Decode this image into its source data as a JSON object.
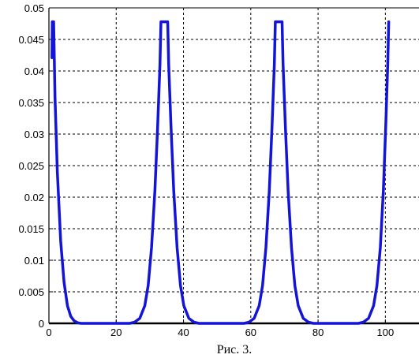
{
  "chart_data": {
    "type": "line",
    "xlim": [
      0,
      110
    ],
    "ylim": [
      0,
      0.05
    ],
    "x_ticks": [
      0,
      20,
      40,
      60,
      80,
      100
    ],
    "x_tick_labels": [
      "0",
      "20",
      "40",
      "60",
      "80",
      "100"
    ],
    "y_ticks": [
      0,
      0.005,
      0.01,
      0.015,
      0.02,
      0.025,
      0.03,
      0.035,
      0.04,
      0.045,
      0.05
    ],
    "y_tick_labels": [
      "0",
      "0.005",
      "0.01",
      "0.015",
      "0.02",
      "0.025",
      "0.03",
      "0.035",
      "0.04",
      "0.045",
      "0.05"
    ],
    "grid": true,
    "grid_style": "dashed",
    "series": [
      {
        "color": "#1414d8",
        "points": [
          [
            0.9,
            0.0421
          ],
          [
            1.0,
            0.0478
          ],
          [
            1.4,
            0.0478
          ],
          [
            1.8,
            0.036
          ],
          [
            2.5,
            0.024
          ],
          [
            3.5,
            0.013
          ],
          [
            4.5,
            0.0065
          ],
          [
            5.5,
            0.0028
          ],
          [
            6.5,
            0.0011
          ],
          [
            7.5,
            0.0004
          ],
          [
            8.5,
            0.0001
          ],
          [
            9.5,
            0.0
          ],
          [
            24,
            0.0
          ],
          [
            25.5,
            0.0002
          ],
          [
            27,
            0.0008
          ],
          [
            28.5,
            0.0028
          ],
          [
            29.5,
            0.006
          ],
          [
            30.5,
            0.012
          ],
          [
            31.5,
            0.021
          ],
          [
            32.3,
            0.031
          ],
          [
            33,
            0.041
          ],
          [
            33.3,
            0.0478
          ],
          [
            35.3,
            0.0478
          ],
          [
            35.6,
            0.041
          ],
          [
            36.3,
            0.031
          ],
          [
            37.1,
            0.021
          ],
          [
            38.1,
            0.012
          ],
          [
            39.1,
            0.006
          ],
          [
            40.1,
            0.0028
          ],
          [
            41.6,
            0.0008
          ],
          [
            43.1,
            0.0002
          ],
          [
            44.6,
            0.0
          ],
          [
            58,
            0.0
          ],
          [
            59.5,
            0.0002
          ],
          [
            61,
            0.0008
          ],
          [
            62.5,
            0.0028
          ],
          [
            63.5,
            0.006
          ],
          [
            64.5,
            0.012
          ],
          [
            65.5,
            0.021
          ],
          [
            66.3,
            0.031
          ],
          [
            67,
            0.041
          ],
          [
            67.3,
            0.0478
          ],
          [
            69.3,
            0.0478
          ],
          [
            69.6,
            0.041
          ],
          [
            70.3,
            0.031
          ],
          [
            71.1,
            0.021
          ],
          [
            72.1,
            0.012
          ],
          [
            73.1,
            0.006
          ],
          [
            74.1,
            0.0028
          ],
          [
            75.6,
            0.0008
          ],
          [
            77.1,
            0.0002
          ],
          [
            78.6,
            0.0
          ],
          [
            92,
            0.0
          ],
          [
            93.5,
            0.0002
          ],
          [
            95,
            0.0008
          ],
          [
            96.5,
            0.0028
          ],
          [
            97.5,
            0.006
          ],
          [
            98.5,
            0.012
          ],
          [
            99.4,
            0.021
          ],
          [
            100.1,
            0.031
          ],
          [
            100.7,
            0.041
          ],
          [
            101,
            0.0478
          ]
        ]
      }
    ]
  },
  "caption": "Рис. 3."
}
